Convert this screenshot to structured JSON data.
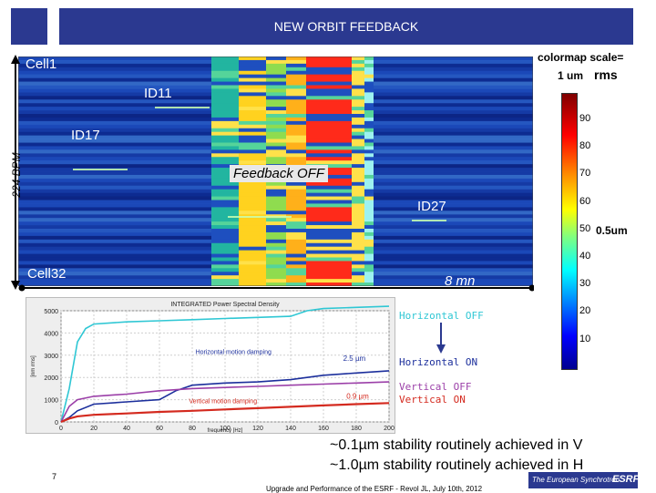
{
  "header": {
    "title": "NEW ORBIT FEEDBACK"
  },
  "heatmap": {
    "ylabel": "224 BPM",
    "top_label": "Cell1",
    "bottom_label": "Cell32",
    "annotations": [
      "ID11",
      "ID17",
      "ID27"
    ],
    "feedback_label": "Feedback OFF",
    "duration_label": "8 mn"
  },
  "colorbar": {
    "title": "colormap scale=",
    "unit_1": "1 um",
    "unit_rms": "rms",
    "ticks": [
      "90",
      "80",
      "70",
      "60",
      "50",
      "40",
      "30",
      "20",
      "10"
    ],
    "half_label": "0.5um"
  },
  "psd": {
    "title": "INTEGRATED Power Spectral Density",
    "ylabel": "[nm rms]",
    "xlabel": "frequency [Hz]",
    "yticks": [
      "5000",
      "4000",
      "3000",
      "2000",
      "1000",
      "0"
    ],
    "xticks": [
      "0",
      "20",
      "40",
      "60",
      "80",
      "100",
      "120",
      "140",
      "160",
      "180",
      "200"
    ],
    "h_damping": "Horizontal motion damping",
    "v_damping": "Vertical motion damping",
    "h_value": "2.5 µm",
    "v_value": "0.9 µm"
  },
  "legend": {
    "h_off": "Horizontal OFF",
    "h_on": "Horizontal ON",
    "v_off": "Vertical OFF",
    "v_on": "Vertical ON"
  },
  "colors": {
    "cyan": "#2fc7d4",
    "blue": "#1c2f9c",
    "magenta": "#9b3fa8",
    "red": "#d42a1f",
    "navy": "#2b3990"
  },
  "stability": {
    "line1": "~0.1µm stability routinely achieved in V",
    "line2": "~1.0µm stability routinely achieved in H"
  },
  "footer": {
    "page_number": "7",
    "citation": "Upgrade and Performance of the ESRF - Revol JL, July 10th, 2012",
    "org": "The European Synchrotron",
    "logo": "ESRF"
  },
  "chart_data": {
    "type": "line",
    "title": "INTEGRATED Power Spectral Density",
    "xlabel": "frequency [Hz]",
    "ylabel": "[nm rms]",
    "xlim": [
      0,
      200
    ],
    "ylim": [
      0,
      5000
    ],
    "series": [
      {
        "name": "Horizontal OFF",
        "color": "#2fc7d4",
        "x": [
          0,
          5,
          10,
          15,
          20,
          40,
          60,
          80,
          100,
          120,
          140,
          150,
          160,
          180,
          200
        ],
        "y": [
          0,
          1500,
          3600,
          4200,
          4400,
          4500,
          4550,
          4600,
          4650,
          4700,
          4750,
          5000,
          5100,
          5150,
          5200
        ]
      },
      {
        "name": "Horizontal ON",
        "color": "#1c2f9c",
        "x": [
          0,
          5,
          10,
          20,
          40,
          60,
          70,
          80,
          100,
          120,
          140,
          160,
          180,
          200
        ],
        "y": [
          0,
          200,
          500,
          800,
          900,
          1000,
          1400,
          1650,
          1750,
          1800,
          1900,
          2100,
          2200,
          2300
        ]
      },
      {
        "name": "Vertical OFF",
        "color": "#9b3fa8",
        "x": [
          0,
          5,
          10,
          20,
          40,
          60,
          80,
          100,
          120,
          140,
          160,
          180,
          200
        ],
        "y": [
          0,
          700,
          1000,
          1150,
          1250,
          1400,
          1500,
          1550,
          1600,
          1650,
          1700,
          1750,
          1800
        ]
      },
      {
        "name": "Vertical ON",
        "color": "#d42a1f",
        "x": [
          0,
          5,
          10,
          20,
          40,
          60,
          80,
          100,
          120,
          140,
          160,
          180,
          200
        ],
        "y": [
          0,
          150,
          250,
          320,
          380,
          450,
          500,
          560,
          620,
          680,
          740,
          800,
          850
        ]
      }
    ]
  }
}
